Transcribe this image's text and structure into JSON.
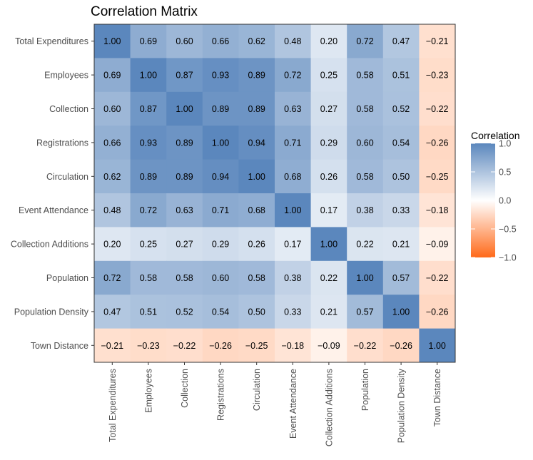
{
  "chart_data": {
    "type": "heatmap",
    "title": "Correlation Matrix",
    "variables": [
      "Total Expenditures",
      "Employees",
      "Collection",
      "Registrations",
      "Circulation",
      "Event Attendance",
      "Collection Additions",
      "Population",
      "Population Density",
      "Town Distance"
    ],
    "values": [
      [
        1.0,
        0.69,
        0.6,
        0.66,
        0.62,
        0.48,
        0.2,
        0.72,
        0.47,
        -0.21
      ],
      [
        0.69,
        1.0,
        0.87,
        0.93,
        0.89,
        0.72,
        0.25,
        0.58,
        0.51,
        -0.23
      ],
      [
        0.6,
        0.87,
        1.0,
        0.89,
        0.89,
        0.63,
        0.27,
        0.58,
        0.52,
        -0.22
      ],
      [
        0.66,
        0.93,
        0.89,
        1.0,
        0.94,
        0.71,
        0.29,
        0.6,
        0.54,
        -0.26
      ],
      [
        0.62,
        0.89,
        0.89,
        0.94,
        1.0,
        0.68,
        0.26,
        0.58,
        0.5,
        -0.25
      ],
      [
        0.48,
        0.72,
        0.63,
        0.71,
        0.68,
        1.0,
        0.17,
        0.38,
        0.33,
        -0.18
      ],
      [
        0.2,
        0.25,
        0.27,
        0.29,
        0.26,
        0.17,
        1.0,
        0.22,
        0.21,
        -0.09
      ],
      [
        0.72,
        0.58,
        0.58,
        0.6,
        0.58,
        0.38,
        0.22,
        1.0,
        0.57,
        -0.22
      ],
      [
        0.47,
        0.51,
        0.52,
        0.54,
        0.5,
        0.33,
        0.21,
        0.57,
        1.0,
        -0.26
      ],
      [
        -0.21,
        -0.23,
        -0.22,
        -0.26,
        -0.25,
        -0.18,
        -0.09,
        -0.22,
        -0.26,
        1.0
      ]
    ],
    "legend": {
      "title": "Correlation",
      "placement": "right",
      "range": [
        -1,
        1
      ],
      "ticks": [
        1.0,
        0.5,
        0.0,
        -0.5,
        -1.0
      ],
      "tick_labels": [
        "1.0",
        "0.5",
        "0.0",
        "−0.5",
        "−1.0"
      ]
    },
    "colors": {
      "high": "#5b87bd",
      "mid": "#ffffff",
      "low": "#ff6a1a",
      "panel_border": "#333333",
      "text": "#000000",
      "axis_text": "#4d4d4d"
    },
    "grid": false
  }
}
